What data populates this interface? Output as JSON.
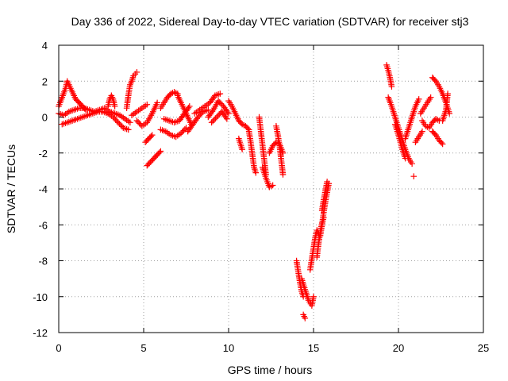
{
  "chart_data": {
    "type": "scatter",
    "title": "Day 336 of 2022, Sidereal Day-to-day VTEC variation (SDTVAR) for receiver stj3",
    "xlabel": "GPS time / hours",
    "ylabel": "SDTVAR / TECUs",
    "xlim": [
      0,
      25
    ],
    "ylim": [
      -12,
      4
    ],
    "xticks": [
      0,
      5,
      10,
      15,
      20,
      25
    ],
    "yticks": [
      -12,
      -10,
      -8,
      -6,
      -4,
      -2,
      0,
      2,
      4
    ],
    "grid": true,
    "marker": "+",
    "color": "#ff0000",
    "series": [
      {
        "name": "SDTVAR",
        "segments": [
          {
            "x": [
              0.0,
              0.2,
              0.4,
              0.5,
              0.6,
              0.8,
              1.0,
              1.2,
              1.4,
              1.6
            ],
            "y": [
              0.6,
              1.1,
              1.6,
              2.0,
              1.8,
              1.4,
              1.0,
              0.8,
              0.6,
              0.4
            ]
          },
          {
            "x": [
              0.0,
              0.3,
              0.6,
              0.9,
              1.2,
              1.5,
              1.8,
              2.1,
              2.4,
              2.7,
              3.0,
              3.3,
              3.6,
              3.9,
              4.2
            ],
            "y": [
              0.2,
              0.1,
              0.3,
              0.4,
              0.5,
              0.5,
              0.4,
              0.3,
              0.4,
              0.5,
              0.3,
              0.2,
              0.1,
              -0.1,
              -0.3
            ]
          },
          {
            "x": [
              0.2,
              0.5,
              0.8,
              1.1,
              1.4,
              1.7,
              2.0,
              2.3,
              2.6,
              2.9,
              3.2,
              3.5,
              3.8,
              4.1
            ],
            "y": [
              -0.4,
              -0.3,
              -0.2,
              -0.1,
              0.0,
              0.1,
              0.2,
              0.3,
              0.3,
              0.2,
              0.0,
              -0.3,
              -0.6,
              -0.7
            ]
          },
          {
            "x": [
              2.9,
              3.0,
              3.1,
              3.2,
              3.3
            ],
            "y": [
              0.6,
              1.0,
              1.2,
              1.0,
              0.6
            ]
          },
          {
            "x": [
              4.0,
              4.1,
              4.2,
              4.3,
              4.4,
              4.5,
              4.6
            ],
            "y": [
              0.5,
              1.2,
              1.8,
              2.0,
              2.3,
              2.4,
              2.5
            ]
          },
          {
            "x": [
              4.6,
              4.9,
              5.2,
              5.5,
              5.8
            ],
            "y": [
              -0.2,
              -0.5,
              -0.3,
              0.2,
              0.8
            ]
          },
          {
            "x": [
              4.3,
              4.6,
              4.9,
              5.2
            ],
            "y": [
              0.1,
              0.3,
              0.5,
              0.7
            ]
          },
          {
            "x": [
              5.1,
              5.3,
              5.5
            ],
            "y": [
              -1.4,
              -1.2,
              -1.0
            ]
          },
          {
            "x": [
              5.2,
              5.4,
              5.6,
              5.8,
              6.0
            ],
            "y": [
              -2.7,
              -2.5,
              -2.3,
              -2.1,
              -1.9
            ]
          },
          {
            "x": [
              6.0,
              6.2,
              6.4,
              6.6,
              6.8,
              7.0
            ],
            "y": [
              0.5,
              0.8,
              1.1,
              1.3,
              1.4,
              1.3
            ]
          },
          {
            "x": [
              6.0,
              6.3,
              6.6,
              6.9,
              7.2,
              7.5
            ],
            "y": [
              -0.7,
              -0.8,
              -1.0,
              -1.1,
              -0.9,
              -0.6
            ]
          },
          {
            "x": [
              6.2,
              6.5,
              6.8,
              7.1,
              7.4,
              7.7
            ],
            "y": [
              -0.1,
              -0.2,
              -0.3,
              -0.2,
              0.2,
              0.6
            ]
          },
          {
            "x": [
              7.0,
              7.2,
              7.4,
              7.6,
              7.8
            ],
            "y": [
              1.2,
              0.8,
              0.4,
              0.0,
              -0.4
            ]
          },
          {
            "x": [
              7.6,
              7.9,
              8.2,
              8.5,
              8.8
            ],
            "y": [
              -0.8,
              -0.4,
              0.0,
              0.3,
              0.4
            ]
          },
          {
            "x": [
              8.0,
              8.3,
              8.6,
              8.9,
              9.2,
              9.5
            ],
            "y": [
              0.2,
              0.4,
              0.6,
              0.8,
              1.2,
              1.3
            ]
          },
          {
            "x": [
              8.8,
              9.1,
              9.4,
              9.7,
              10.0
            ],
            "y": [
              0.0,
              0.4,
              0.9,
              0.6,
              0.2
            ]
          },
          {
            "x": [
              9.0,
              9.3,
              9.6,
              9.9
            ],
            "y": [
              -0.3,
              0.0,
              0.3,
              -0.1
            ]
          },
          {
            "x": [
              10.0,
              10.2,
              10.4,
              10.6,
              10.8,
              11.0,
              11.2
            ],
            "y": [
              0.9,
              0.6,
              0.2,
              -0.2,
              -0.4,
              -0.5,
              -0.7
            ]
          },
          {
            "x": [
              10.6,
              10.7,
              10.8
            ],
            "y": [
              -1.2,
              -1.5,
              -1.8
            ]
          },
          {
            "x": [
              11.2,
              11.3,
              11.4,
              11.5,
              11.6
            ],
            "y": [
              -0.8,
              -1.4,
              -2.1,
              -2.8,
              -3.1
            ]
          },
          {
            "x": [
              11.8,
              11.9,
              12.0,
              12.1,
              12.2
            ],
            "y": [
              0.0,
              -0.8,
              -1.6,
              -2.4,
              -3.2
            ]
          },
          {
            "x": [
              12.0,
              12.2,
              12.4,
              12.6
            ],
            "y": [
              -2.8,
              -3.4,
              -3.9,
              -3.8
            ]
          },
          {
            "x": [
              12.4,
              12.6,
              12.8,
              13.0,
              13.2
            ],
            "y": [
              -2.0,
              -1.6,
              -1.4,
              -1.5,
              -2.0
            ]
          },
          {
            "x": [
              12.8,
              12.9,
              13.0,
              13.1,
              13.2
            ],
            "y": [
              -0.5,
              -1.0,
              -1.6,
              -2.4,
              -3.2
            ]
          },
          {
            "x": [
              14.0,
              14.1,
              14.2,
              14.3,
              14.4
            ],
            "y": [
              -8.0,
              -8.6,
              -9.2,
              -9.7,
              -10.0
            ]
          },
          {
            "x": [
              14.3,
              14.5,
              14.7,
              14.9,
              15.0
            ],
            "y": [
              -9.0,
              -9.6,
              -10.2,
              -10.5,
              -10.0
            ]
          },
          {
            "x": [
              14.4,
              14.5
            ],
            "y": [
              -11.0,
              -11.2
            ]
          },
          {
            "x": [
              14.8,
              14.9,
              15.0,
              15.1,
              15.2,
              15.3
            ],
            "y": [
              -8.5,
              -7.9,
              -7.3,
              -6.7,
              -6.3,
              -6.5
            ]
          },
          {
            "x": [
              15.2,
              15.3,
              15.4,
              15.5,
              15.6
            ],
            "y": [
              -7.8,
              -7.0,
              -6.4,
              -5.9,
              -5.6
            ]
          },
          {
            "x": [
              15.4,
              15.5,
              15.6,
              15.7,
              15.8,
              15.9
            ],
            "y": [
              -6.6,
              -6.0,
              -5.3,
              -4.7,
              -4.2,
              -3.7
            ]
          },
          {
            "x": [
              15.5,
              15.6,
              15.7,
              15.8
            ],
            "y": [
              -5.2,
              -4.6,
              -4.1,
              -3.6
            ]
          },
          {
            "x": [
              19.3,
              19.4,
              19.5,
              19.6
            ],
            "y": [
              2.9,
              2.6,
              2.2,
              1.7
            ]
          },
          {
            "x": [
              19.4,
              19.6,
              19.8,
              20.0,
              20.2,
              20.4,
              20.6,
              20.8
            ],
            "y": [
              1.1,
              0.6,
              0.0,
              -0.6,
              -1.2,
              -1.8,
              -2.3,
              -2.6
            ]
          },
          {
            "x": [
              19.8,
              20.0,
              20.2,
              20.4
            ],
            "y": [
              -0.4,
              -1.0,
              -1.7,
              -2.3
            ]
          },
          {
            "x": [
              20.4,
              20.6,
              20.8,
              21.0,
              21.2
            ],
            "y": [
              -1.2,
              -0.6,
              0.0,
              0.6,
              1.0
            ]
          },
          {
            "x": [
              20.9
            ],
            "y": [
              -3.3
            ]
          },
          {
            "x": [
              21.0,
              21.2,
              21.4
            ],
            "y": [
              -1.4,
              -1.1,
              -0.8
            ]
          },
          {
            "x": [
              21.3,
              21.5,
              21.7,
              21.9
            ],
            "y": [
              0.2,
              0.5,
              0.8,
              1.1
            ]
          },
          {
            "x": [
              21.4,
              21.6,
              21.8,
              22.0,
              22.2,
              22.4
            ],
            "y": [
              -0.2,
              -0.5,
              -0.6,
              -0.3,
              -0.1,
              -0.2
            ]
          },
          {
            "x": [
              22.0,
              22.2,
              22.4,
              22.6,
              22.8,
              23.0
            ],
            "y": [
              2.2,
              2.0,
              1.7,
              1.3,
              0.8,
              0.2
            ]
          },
          {
            "x": [
              22.0,
              22.2,
              22.4,
              22.6
            ],
            "y": [
              -0.8,
              -1.0,
              -1.3,
              -1.5
            ]
          },
          {
            "x": [
              22.6,
              22.8,
              22.9
            ],
            "y": [
              -0.2,
              0.4,
              1.3
            ]
          }
        ]
      }
    ]
  }
}
